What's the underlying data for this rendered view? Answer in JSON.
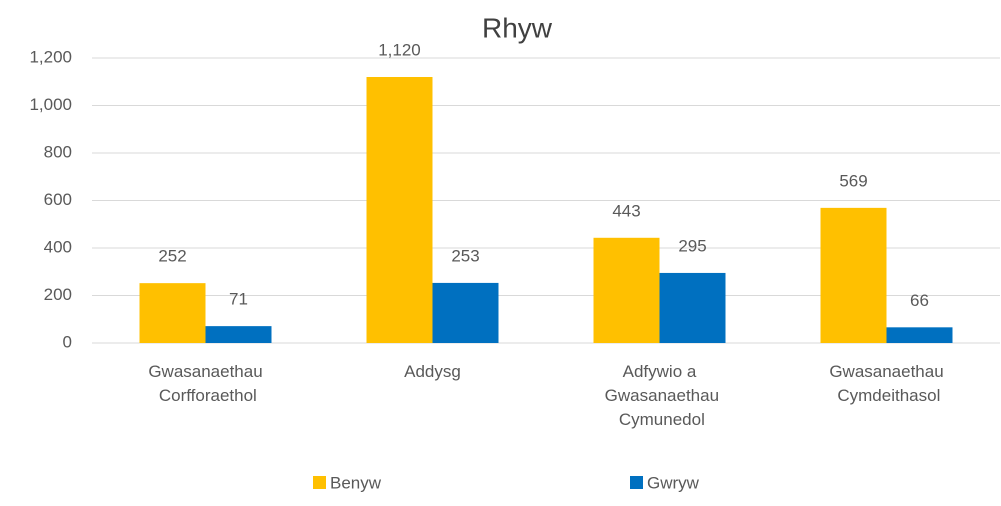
{
  "chart_data": {
    "type": "bar",
    "title": "Rhyw",
    "categories": [
      "Gwasanaethau Corfforaethol",
      "Addysg",
      "Adfywio a Gwasanaethau Cymunedol",
      "Gwasanaethau Cymdeithasol"
    ],
    "series": [
      {
        "name": "Benyw",
        "color": "#ffc000",
        "values": [
          252,
          1120,
          443,
          569
        ],
        "value_labels": [
          "252",
          "1,120",
          "443",
          "569"
        ]
      },
      {
        "name": "Gwryw",
        "color": "#0070c0",
        "values": [
          71,
          253,
          295,
          66
        ]
      }
    ],
    "ylim": [
      0,
      1200
    ],
    "yticks": [
      0,
      200,
      400,
      600,
      800,
      {
        "value": 1000,
        "label": "1,000"
      },
      {
        "value": 1200,
        "label": "1,200"
      }
    ],
    "grid": true,
    "legend": "bottom"
  }
}
